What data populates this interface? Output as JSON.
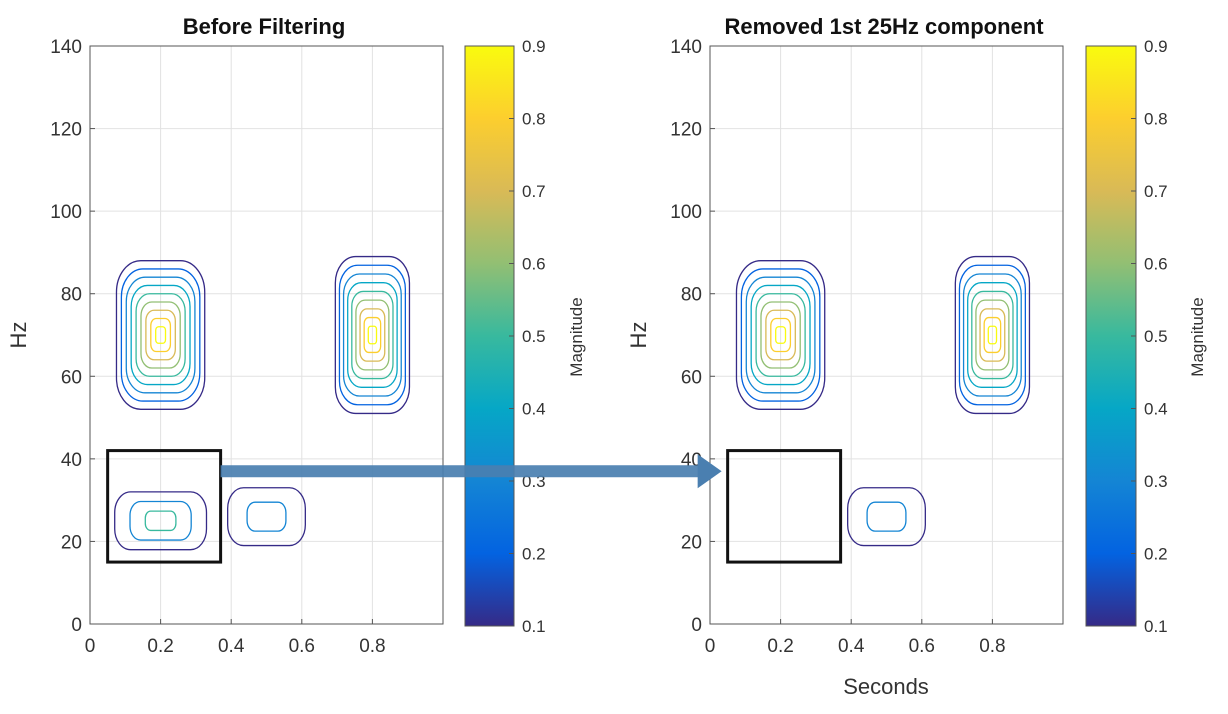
{
  "chart_data": [
    {
      "type": "contour",
      "title": "Before Filtering",
      "xlabel": "",
      "ylabel": "Hz",
      "xlim": [
        0,
        1
      ],
      "ylim": [
        0,
        140
      ],
      "xticks": [
        "0",
        "0.2",
        "0.4",
        "0.6",
        "0.8"
      ],
      "xtick_values": [
        0,
        0.2,
        0.4,
        0.6,
        0.8
      ],
      "yticks": [
        "0",
        "20",
        "40",
        "60",
        "80",
        "100",
        "120",
        "140"
      ],
      "ytick_values": [
        0,
        20,
        40,
        60,
        80,
        100,
        120,
        140
      ],
      "grid": true,
      "colorbar": {
        "label": "Magnitude",
        "range": [
          0.1,
          0.9
        ],
        "ticks": [
          "0.1",
          "0.2",
          "0.3",
          "0.4",
          "0.5",
          "0.6",
          "0.7",
          "0.8",
          "0.9"
        ],
        "tick_values": [
          0.1,
          0.2,
          0.3,
          0.4,
          0.5,
          0.6,
          0.7,
          0.8,
          0.9
        ]
      },
      "components": [
        {
          "name": "70Hz burst at 0.2s",
          "t": 0.2,
          "f": 70,
          "t_halfwidth": 0.125,
          "f_halfwidth": 18,
          "levels": 9
        },
        {
          "name": "70Hz burst at 0.8s",
          "t": 0.8,
          "f": 70,
          "t_halfwidth": 0.105,
          "f_halfwidth": 19,
          "levels": 9
        },
        {
          "name": "25Hz component at 0.2s",
          "t": 0.2,
          "f": 25,
          "t_halfwidth": 0.13,
          "f_halfwidth": 7,
          "levels": 3
        },
        {
          "name": "25Hz component at 0.5s",
          "t": 0.5,
          "f": 26,
          "t_halfwidth": 0.11,
          "f_halfwidth": 7,
          "levels": 2
        }
      ],
      "highlight_box": {
        "t": [
          0.05,
          0.37
        ],
        "f": [
          15,
          42
        ]
      }
    },
    {
      "type": "contour",
      "title": "Removed 1st 25Hz component",
      "xlabel": "Seconds",
      "ylabel": "Hz",
      "xlim": [
        0,
        1
      ],
      "ylim": [
        0,
        140
      ],
      "xticks": [
        "0",
        "0.2",
        "0.4",
        "0.6",
        "0.8"
      ],
      "xtick_values": [
        0,
        0.2,
        0.4,
        0.6,
        0.8
      ],
      "yticks": [
        "0",
        "20",
        "40",
        "60",
        "80",
        "100",
        "120",
        "140"
      ],
      "ytick_values": [
        0,
        20,
        40,
        60,
        80,
        100,
        120,
        140
      ],
      "grid": true,
      "colorbar": {
        "label": "Magnitude",
        "range": [
          0.1,
          0.9
        ],
        "ticks": [
          "0.1",
          "0.2",
          "0.3",
          "0.4",
          "0.5",
          "0.6",
          "0.7",
          "0.8",
          "0.9"
        ],
        "tick_values": [
          0.1,
          0.2,
          0.3,
          0.4,
          0.5,
          0.6,
          0.7,
          0.8,
          0.9
        ]
      },
      "components": [
        {
          "name": "70Hz burst at 0.2s",
          "t": 0.2,
          "f": 70,
          "t_halfwidth": 0.125,
          "f_halfwidth": 18,
          "levels": 9
        },
        {
          "name": "70Hz burst at 0.8s",
          "t": 0.8,
          "f": 70,
          "t_halfwidth": 0.105,
          "f_halfwidth": 19,
          "levels": 9
        },
        {
          "name": "25Hz component at 0.5s",
          "t": 0.5,
          "f": 26,
          "t_halfwidth": 0.11,
          "f_halfwidth": 7,
          "levels": 2
        }
      ],
      "highlight_box": {
        "t": [
          0.05,
          0.37
        ],
        "f": [
          15,
          42
        ]
      }
    }
  ],
  "arrow": {
    "color": "#4a7fb0",
    "from_panel": 0,
    "to_panel": 1,
    "f": 37
  },
  "colors": {
    "parula": [
      "#352a87",
      "#0363e1",
      "#1485d4",
      "#06a7c6",
      "#38b99e",
      "#92bf73",
      "#d9ba56",
      "#fcce2e",
      "#f9fb0e"
    ],
    "box": "#111111",
    "grid": "#e2e2e2",
    "axis": "#555555"
  }
}
